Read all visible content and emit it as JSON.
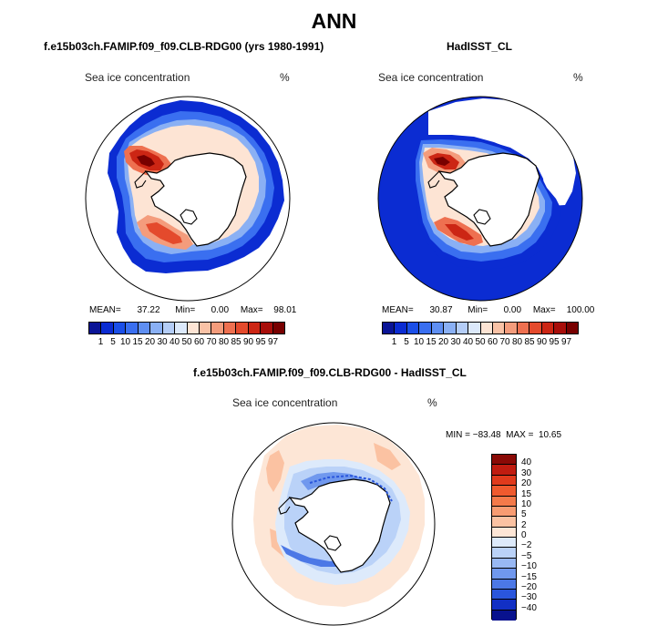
{
  "main_title": "ANN",
  "panels": [
    {
      "title": "f.e15b03ch.FAMIP.f09_f09.CLB-RDG00 (yrs 1980-1991)",
      "variable": "Sea ice concentration",
      "units": "%",
      "stats": {
        "mean_label": "MEAN=",
        "mean": "37.22",
        "min_label": "Min=",
        "min": "0.00",
        "max_label": "Max=",
        "max": "98.01"
      }
    },
    {
      "title": "HadISST_CL",
      "variable": "Sea ice concentration",
      "units": "%",
      "stats": {
        "mean_label": "MEAN=",
        "mean": "30.87",
        "min_label": "Min=",
        "min": "0.00",
        "max_label": "Max=",
        "max": "100.00"
      }
    },
    {
      "title": "f.e15b03ch.FAMIP.f09_f09.CLB-RDG00 - HadISST_CL",
      "variable": "Sea ice concentration",
      "units": "%",
      "minmax": "MIN = −83.48  MAX =  10.65"
    }
  ],
  "colorbar_abs": {
    "ticks": [
      "1",
      "5",
      "10",
      "15",
      "20",
      "30",
      "40",
      "50",
      "60",
      "70",
      "80",
      "85",
      "90",
      "95",
      "97"
    ],
    "colors": [
      "#0a1496",
      "#0b2cd2",
      "#1b4fe8",
      "#3a6ff0",
      "#5f8ff2",
      "#8ab0f4",
      "#b4cdf7",
      "#dce9fb",
      "#fde4d4",
      "#f9c2a6",
      "#f49c7c",
      "#ee7050",
      "#e44a2c",
      "#cc2614",
      "#a80e0a",
      "#780000"
    ]
  },
  "colorbar_diff": {
    "ticks": [
      "40",
      "30",
      "20",
      "15",
      "10",
      "5",
      "2",
      "0",
      "−2",
      "−5",
      "−10",
      "−15",
      "−20",
      "−30",
      "−40"
    ],
    "colors": [
      "#8a0a06",
      "#c01c10",
      "#e03a1c",
      "#ef5a2e",
      "#f47a4a",
      "#f89c72",
      "#fbc2a2",
      "#fde6d6",
      "#ddeafb",
      "#bad2f8",
      "#98b8f4",
      "#7098ee",
      "#4c78e6",
      "#2a56dc",
      "#1230c4",
      "#08128e"
    ]
  }
}
